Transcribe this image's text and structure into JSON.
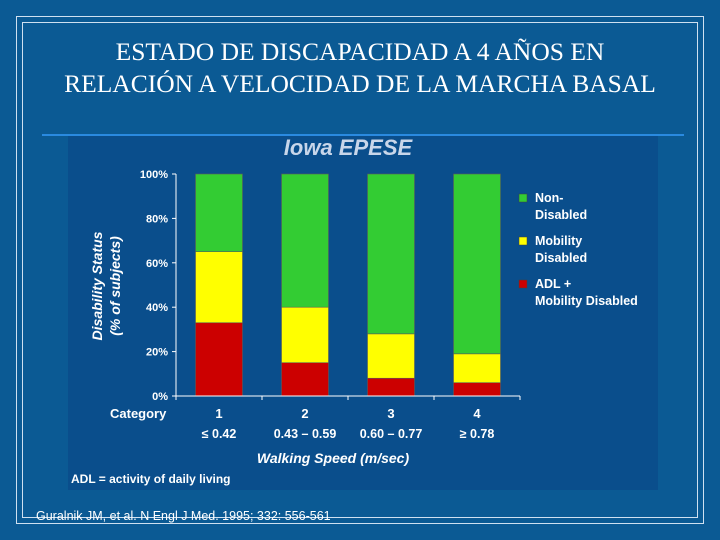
{
  "slide": {
    "title_line1": "ESTADO DE DISCAPACIDAD A 4 AÑOS EN",
    "title_line2": "RELACIÓN A VELOCIDAD DE LA MARCHA BASAL",
    "citation": "Guralnik JM, et al. N Engl J Med. 1995; 332: 556-561"
  },
  "chart_data": {
    "type": "bar",
    "stacked": true,
    "title": "Iowa EPESE",
    "ylabel_line1": "Disability Status",
    "ylabel_line2": "(% of subjects)",
    "xlabel": "Walking Speed (m/sec)",
    "category_header": "Category",
    "categories": [
      "1",
      "2",
      "3",
      "4"
    ],
    "speed_labels": [
      "≤ 0.42",
      "0.43 – 0.59",
      "0.60 – 0.77",
      "≥ 0.78"
    ],
    "yticks": [
      "0%",
      "20%",
      "40%",
      "60%",
      "80%",
      "100%"
    ],
    "ylim": [
      0,
      100
    ],
    "series": [
      {
        "name": "ADL + Mobility Disabled",
        "legend_line1": "ADL +",
        "legend_line2": "Mobility Disabled",
        "color": "#cc0000",
        "values": [
          33,
          15,
          8,
          6
        ]
      },
      {
        "name": "Mobility Disabled",
        "legend_line1": "Mobility",
        "legend_line2": "Disabled",
        "color": "#ffff00",
        "values": [
          32,
          25,
          20,
          13
        ]
      },
      {
        "name": "Non-Disabled",
        "legend_line1": "Non-",
        "legend_line2": "Disabled",
        "color": "#33cc33",
        "values": [
          35,
          60,
          72,
          81
        ]
      }
    ],
    "footnote": "ADL = activity of daily living"
  },
  "colors": {
    "background": "#0b5a94",
    "chart_title": "#c8d6ea",
    "text": "#ffffff"
  }
}
